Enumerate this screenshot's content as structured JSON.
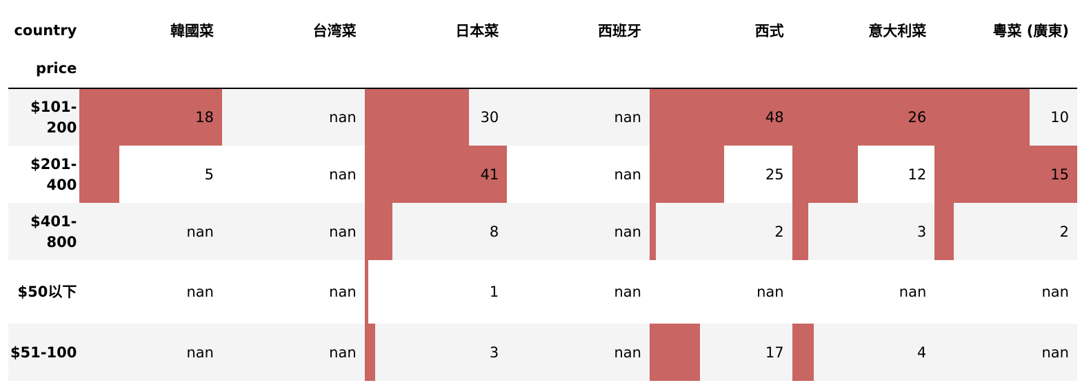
{
  "table": {
    "column_axis_label": "country",
    "row_axis_label": "price",
    "bar_color": "#c96562",
    "stripe_color": "#f4f4f4",
    "columns": [
      "韓國菜",
      "台湾菜",
      "日本菜",
      "西班牙",
      "西式",
      "意大利菜",
      "粵菜 (廣東)"
    ],
    "column_max": [
      18,
      null,
      41,
      null,
      48,
      26,
      15
    ],
    "rows": [
      {
        "label": "$101-200",
        "values": [
          "18",
          "nan",
          "30",
          "nan",
          "48",
          "26",
          "10"
        ]
      },
      {
        "label": "$201-400",
        "values": [
          "5",
          "nan",
          "41",
          "nan",
          "25",
          "12",
          "15"
        ]
      },
      {
        "label": "$401-800",
        "values": [
          "nan",
          "nan",
          "8",
          "nan",
          "2",
          "3",
          "2"
        ]
      },
      {
        "label": "$50以下",
        "values": [
          "nan",
          "nan",
          "1",
          "nan",
          "nan",
          "nan",
          "nan"
        ]
      },
      {
        "label": "$51-100",
        "values": [
          "nan",
          "nan",
          "3",
          "nan",
          "17",
          "4",
          "nan"
        ]
      }
    ]
  }
}
